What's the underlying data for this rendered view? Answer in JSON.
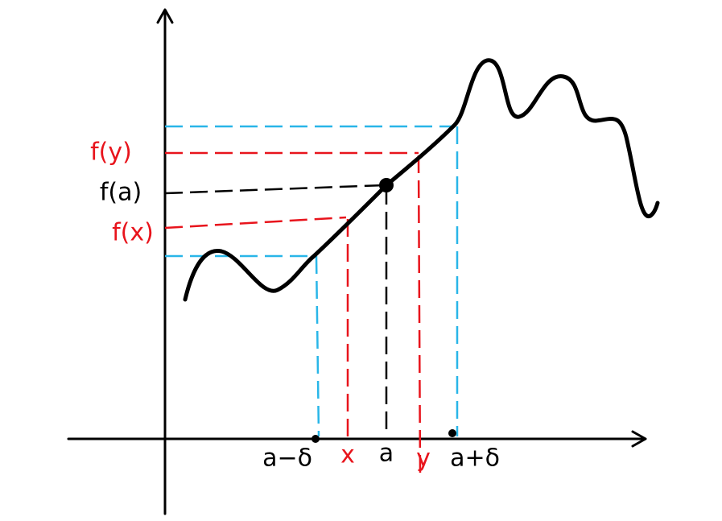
{
  "y_axis_labels": [
    "f(y)",
    "f(a)",
    "f(x)"
  ],
  "x_axis_labels": [
    "a−δ",
    "x",
    "a",
    "y",
    "a+δ"
  ]
}
